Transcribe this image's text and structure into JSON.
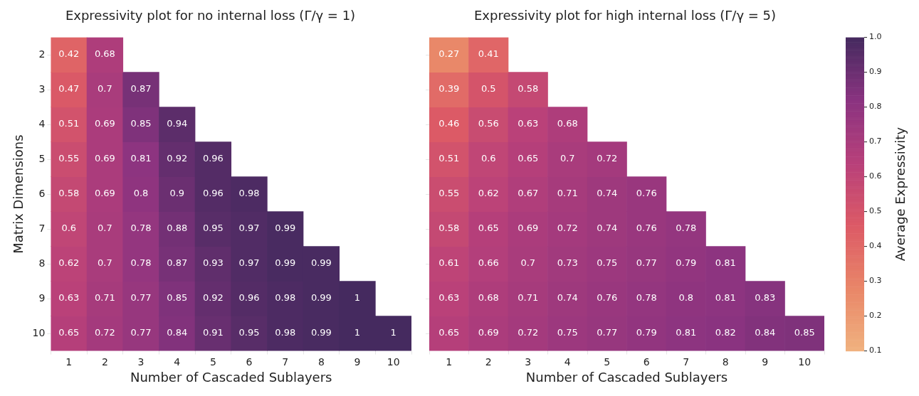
{
  "chart_data": [
    {
      "type": "heatmap",
      "title": "Expressivity plot for no internal loss (Γ/γ = 1)",
      "xlabel": "Number of Cascaded Sublayers",
      "ylabel": "Matrix Dimensions",
      "categories": [
        "1",
        "2",
        "3",
        "4",
        "5",
        "6",
        "7",
        "8",
        "9",
        "10"
      ],
      "y_categories": [
        "2",
        "3",
        "4",
        "5",
        "6",
        "7",
        "8",
        "9",
        "10"
      ],
      "data_labels": true,
      "cells": [
        [
          0.42,
          0.68,
          null,
          null,
          null,
          null,
          null,
          null,
          null,
          null
        ],
        [
          0.47,
          0.7,
          0.87,
          null,
          null,
          null,
          null,
          null,
          null,
          null
        ],
        [
          0.51,
          0.69,
          0.85,
          0.94,
          null,
          null,
          null,
          null,
          null,
          null
        ],
        [
          0.55,
          0.69,
          0.81,
          0.92,
          0.96,
          null,
          null,
          null,
          null,
          null
        ],
        [
          0.58,
          0.69,
          0.8,
          0.9,
          0.96,
          0.98,
          null,
          null,
          null,
          null
        ],
        [
          0.6,
          0.7,
          0.78,
          0.88,
          0.95,
          0.97,
          0.99,
          null,
          null,
          null
        ],
        [
          0.62,
          0.7,
          0.78,
          0.87,
          0.93,
          0.97,
          0.99,
          0.99,
          null,
          null
        ],
        [
          0.63,
          0.71,
          0.77,
          0.85,
          0.92,
          0.96,
          0.98,
          0.99,
          1,
          null
        ],
        [
          0.65,
          0.72,
          0.77,
          0.84,
          0.91,
          0.95,
          0.98,
          0.99,
          1,
          1
        ]
      ]
    },
    {
      "type": "heatmap",
      "title": "Expressivity plot for high internal loss (Γ/γ = 5)",
      "xlabel": "Number of Cascaded Sublayers",
      "clabel": "Average Expressivity",
      "categories": [
        "1",
        "2",
        "3",
        "4",
        "5",
        "6",
        "7",
        "8",
        "9",
        "10"
      ],
      "y_categories": [
        "2",
        "3",
        "4",
        "5",
        "6",
        "7",
        "8",
        "9",
        "10"
      ],
      "tick_labels": "x",
      "data_labels": true,
      "clim": [
        0.1,
        1.0
      ],
      "cticks": [
        0.1,
        0.2,
        0.3,
        0.4,
        0.5,
        0.6,
        0.7,
        0.8,
        0.9,
        {
          "value": 1,
          "label": "1.0"
        }
      ],
      "cells": [
        [
          0.27,
          0.41,
          null,
          null,
          null,
          null,
          null,
          null,
          null,
          null
        ],
        [
          0.39,
          0.5,
          0.58,
          null,
          null,
          null,
          null,
          null,
          null,
          null
        ],
        [
          0.46,
          0.56,
          0.63,
          0.68,
          null,
          null,
          null,
          null,
          null,
          null
        ],
        [
          0.51,
          0.6,
          0.65,
          0.7,
          0.72,
          null,
          null,
          null,
          null,
          null
        ],
        [
          0.55,
          0.62,
          0.67,
          0.71,
          0.74,
          0.76,
          null,
          null,
          null,
          null
        ],
        [
          0.58,
          0.65,
          0.69,
          0.72,
          0.74,
          0.76,
          0.78,
          null,
          null,
          null
        ],
        [
          0.61,
          0.66,
          0.7,
          0.73,
          0.75,
          0.77,
          0.79,
          0.81,
          null,
          null
        ],
        [
          0.63,
          0.68,
          0.71,
          0.74,
          0.76,
          0.78,
          0.8,
          0.81,
          0.83,
          null
        ],
        [
          0.65,
          0.69,
          0.72,
          0.75,
          0.77,
          0.79,
          0.81,
          0.82,
          0.84,
          0.85
        ]
      ]
    }
  ]
}
